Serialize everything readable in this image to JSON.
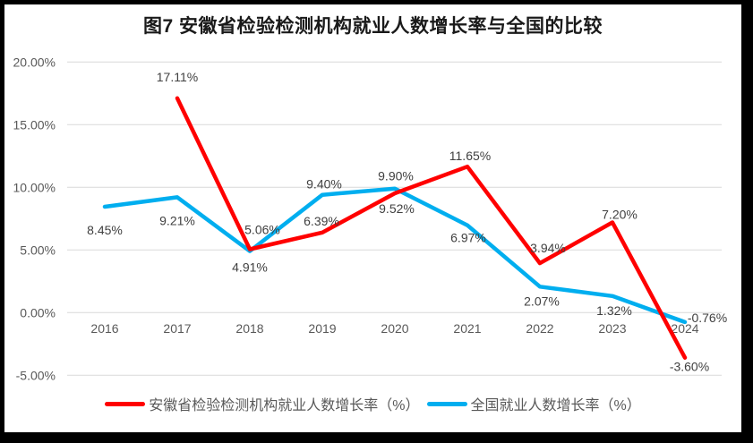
{
  "title": "图7 安徽省检验检测机构就业人数增长率与全国的比较",
  "colors": {
    "anhui_line": "#ff0000",
    "national_line": "#00aeef",
    "gridline": "#d9d9d9",
    "axis_text": "#595959",
    "data_label_text": "#404040",
    "title_text": "#1a1a1a",
    "frame": "#000000",
    "background": "#ffffff"
  },
  "chart_data": {
    "type": "line",
    "title": "图7 安徽省检验检测机构就业人数增长率与全国的比较",
    "categories": [
      "2016",
      "2017",
      "2018",
      "2019",
      "2020",
      "2021",
      "2022",
      "2023",
      "2024"
    ],
    "series": [
      {
        "key": "anhui",
        "name": "安徽省检验检测机构就业人数增长率（%）",
        "color": "#ff0000",
        "values": [
          null,
          17.11,
          5.06,
          6.39,
          9.52,
          11.65,
          3.94,
          7.2,
          -3.6
        ],
        "labels": [
          null,
          "17.11%",
          "5.06%",
          "6.39%",
          "9.52%",
          "11.65%",
          "3.94%",
          "7.20%",
          "-3.60%"
        ],
        "label_offsets": [
          null,
          [
            0,
            -24
          ],
          [
            14,
            -22
          ],
          [
            -1,
            -13
          ],
          [
            2,
            17
          ],
          [
            3,
            -12
          ],
          [
            9,
            -17
          ],
          [
            8,
            -9
          ],
          [
            5,
            10
          ]
        ]
      },
      {
        "key": "national",
        "name": "全国就业人数增长率（%）",
        "color": "#00aeef",
        "values": [
          8.45,
          9.21,
          4.91,
          9.4,
          9.9,
          6.97,
          2.07,
          1.32,
          -0.76
        ],
        "labels": [
          "8.45%",
          "9.21%",
          "4.91%",
          "9.40%",
          "9.90%",
          "6.97%",
          "2.07%",
          "1.32%",
          "-0.76%"
        ],
        "label_offsets": [
          [
            0,
            26
          ],
          [
            0,
            26
          ],
          [
            0,
            18
          ],
          [
            2,
            -12
          ],
          [
            1,
            -14
          ],
          [
            1,
            14
          ],
          [
            2,
            16
          ],
          [
            2,
            16
          ],
          [
            25,
            -5
          ]
        ]
      }
    ],
    "ylim": [
      -5,
      20
    ],
    "yticks": {
      "values": [
        20,
        15,
        10,
        5,
        0,
        -5
      ],
      "labels": [
        "20.00%",
        "15.00%",
        "10.00%",
        "5.00%",
        "0.00%",
        "-5.00%"
      ]
    },
    "grid": true,
    "data_labels": true,
    "legend_position": "bottom"
  }
}
